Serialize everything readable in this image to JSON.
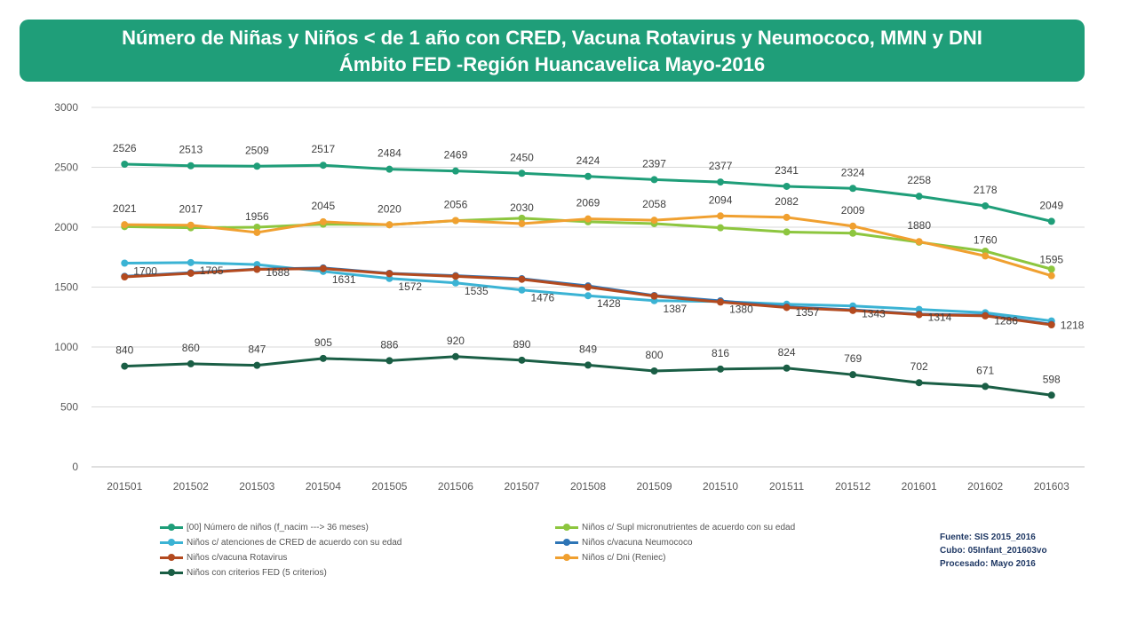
{
  "header": {
    "title_line1": "Número de Niñas y Niños < de 1 año con CRED, Vacuna Rotavirus y Neumococo, MMN y DNI",
    "title_line2": "Ámbito FED -Región Huancavelica Mayo-2016"
  },
  "source": {
    "line1": "Fuente: SIS 2015_2016",
    "line2": "Cubo: 05Infant_201603vo",
    "line3": "Procesado: Mayo 2016"
  },
  "chart_data": {
    "type": "line",
    "categories": [
      "201501",
      "201502",
      "201503",
      "201504",
      "201505",
      "201506",
      "201507",
      "201508",
      "201509",
      "201510",
      "201511",
      "201512",
      "201601",
      "201602",
      "201603"
    ],
    "ylim": [
      0,
      3000
    ],
    "yticks": [
      0,
      500,
      1000,
      1500,
      2000,
      2500,
      3000
    ],
    "grid": true,
    "legend_position": "bottom",
    "series": [
      {
        "name": "[00] Número de niños (f_nacim ---> 36 meses)",
        "color": "#1f9e79",
        "values": [
          2526,
          2513,
          2509,
          2517,
          2484,
          2469,
          2450,
          2424,
          2397,
          2377,
          2341,
          2324,
          2258,
          2178,
          2049
        ],
        "labels": [
          "2526",
          "2513",
          "2509",
          "2517",
          "2484",
          "2469",
          "2450",
          "2424",
          "2397",
          "2377",
          "2341",
          "2324",
          "2258",
          "2178",
          "2049"
        ]
      },
      {
        "name": "Niños c/ Supl micronutrientes de acuerdo con su edad",
        "color": "#8dc63f",
        "values": [
          2005,
          1995,
          2000,
          2025,
          2020,
          2055,
          2075,
          2045,
          2030,
          1995,
          1960,
          1950,
          1875,
          1800,
          1650
        ],
        "labels": []
      },
      {
        "name": "Niños c/ atenciones de CRED de acuerdo con su edad",
        "color": "#3bb3d4",
        "values": [
          1700,
          1705,
          1688,
          1631,
          1572,
          1535,
          1476,
          1428,
          1387,
          1380,
          1357,
          1343,
          1314,
          1286,
          1218
        ],
        "labels": [
          "1700",
          "1705",
          "1688",
          "1631",
          "1572",
          "1535",
          "1476",
          "1428",
          "1387",
          "1380",
          "1357",
          "1343",
          "1314",
          "1286",
          "1218"
        ]
      },
      {
        "name": "Niños c/vacuna Neumococo",
        "color": "#2e75b6",
        "values": [
          1590,
          1620,
          1650,
          1660,
          1615,
          1595,
          1570,
          1510,
          1430,
          1385,
          1335,
          1310,
          1275,
          1265,
          1190
        ],
        "labels": []
      },
      {
        "name": "Niños c/vacuna Rotavirus",
        "color": "#b34a1f",
        "values": [
          1585,
          1615,
          1648,
          1655,
          1612,
          1590,
          1565,
          1500,
          1425,
          1375,
          1330,
          1305,
          1270,
          1260,
          1185
        ],
        "labels": []
      },
      {
        "name": "Niños c/ Dni (Reniec)",
        "color": "#f0a030",
        "values": [
          2021,
          2017,
          1956,
          2045,
          2020,
          2056,
          2030,
          2069,
          2058,
          2094,
          2082,
          2009,
          1880,
          1760,
          1595
        ],
        "labels": [
          "2021",
          "2017",
          "1956",
          "2045",
          "2020",
          "2056",
          "2030",
          "2069",
          "2058",
          "2094",
          "2082",
          "2009",
          "1880",
          "1760",
          "1595"
        ]
      },
      {
        "name": "Niños con criterios FED (5 criterios)",
        "color": "#1a5e45",
        "values": [
          840,
          860,
          847,
          905,
          886,
          920,
          890,
          849,
          800,
          816,
          824,
          769,
          702,
          671,
          598
        ],
        "labels": [
          "840",
          "860",
          "847",
          "905",
          "886",
          "920",
          "890",
          "849",
          "800",
          "816",
          "824",
          "769",
          "702",
          "671",
          "598"
        ]
      }
    ]
  }
}
